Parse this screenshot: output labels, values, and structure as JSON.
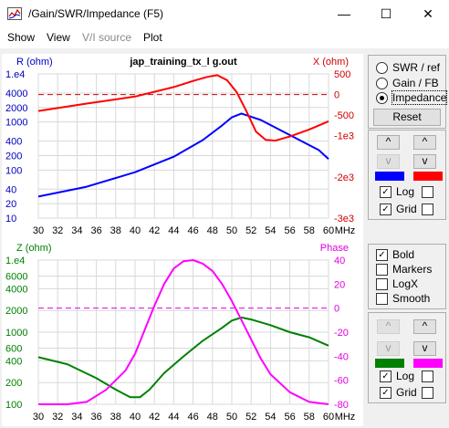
{
  "window": {
    "title": "/Gain/SWR/Impedance (F5)",
    "minimize": "—",
    "maximize": "☐",
    "close": "✕"
  },
  "menu": {
    "items": [
      "Show",
      "View",
      "V/I source",
      "Plot"
    ]
  },
  "chart_data": [
    {
      "type": "line",
      "title": "jap_training_tx_l g.out",
      "ylabel_left": "R (ohm)",
      "ylabel_right": "X (ohm)",
      "xlabel": "MHz",
      "x_ticks": [
        30,
        32,
        34,
        36,
        38,
        40,
        42,
        44,
        46,
        48,
        50,
        52,
        54,
        56,
        58,
        60
      ],
      "y_left_ticks": [
        "1.e4",
        "4000",
        "2000",
        "1000",
        "400",
        "200",
        "100",
        "40",
        "20",
        "10"
      ],
      "y_right_ticks": [
        "500",
        "0",
        "-500",
        "-1e3",
        "-2e3",
        "-3e3"
      ],
      "y_left_scale": "log",
      "series": [
        {
          "name": "R (ohm)",
          "axis": "left",
          "color": "#0000ff",
          "x": [
            30,
            35,
            40,
            44,
            47,
            49,
            50,
            51,
            53,
            55,
            57,
            59,
            61
          ],
          "y": [
            28,
            45,
            90,
            190,
            420,
            850,
            1250,
            1500,
            1100,
            680,
            420,
            260,
            170
          ]
        },
        {
          "name": "X (ohm)",
          "axis": "right",
          "color": "#ff0000",
          "x": [
            30,
            35,
            40,
            44,
            46,
            47.5,
            48.5,
            49.5,
            50.5,
            51.5,
            52.5,
            53.5,
            54.5,
            56,
            58,
            61
          ],
          "y": [
            -400,
            -220,
            -50,
            180,
            330,
            430,
            470,
            350,
            60,
            -400,
            -900,
            -1100,
            -1120,
            -1020,
            -850,
            -650
          ]
        }
      ]
    },
    {
      "type": "line",
      "ylabel_left": "Z (ohm)",
      "ylabel_right": "Phase",
      "xlabel": "MHz",
      "x_ticks": [
        30,
        32,
        34,
        36,
        38,
        40,
        42,
        44,
        46,
        48,
        50,
        52,
        54,
        56,
        58,
        60
      ],
      "y_left_ticks": [
        "1.e4",
        "6000",
        "4000",
        "2000",
        "1000",
        "600",
        "400",
        "200",
        "100"
      ],
      "y_right_ticks": [
        "40",
        "20",
        "0",
        "-20",
        "-40",
        "-60",
        "-80"
      ],
      "y_left_scale": "log",
      "series": [
        {
          "name": "Z (ohm)",
          "axis": "left",
          "color": "#008000",
          "x": [
            30,
            33,
            36,
            38,
            39.5,
            40.5,
            41.5,
            43,
            45,
            47,
            49,
            50,
            51,
            52,
            54,
            56,
            58,
            61
          ],
          "y": [
            450,
            360,
            230,
            160,
            125,
            125,
            160,
            270,
            460,
            760,
            1150,
            1450,
            1600,
            1500,
            1250,
            1000,
            850,
            650
          ]
        },
        {
          "name": "Phase",
          "axis": "right",
          "color": "#ff00ff",
          "x": [
            30,
            33,
            35,
            37,
            39,
            40,
            41,
            42,
            43,
            44,
            45,
            46,
            47,
            48,
            49,
            50,
            51,
            52,
            53,
            54,
            56,
            58,
            61
          ],
          "y": [
            -86,
            -82,
            -78,
            -68,
            -52,
            -38,
            -18,
            2,
            20,
            33,
            39,
            40,
            37,
            31,
            20,
            6,
            -10,
            -26,
            -42,
            -55,
            -70,
            -78,
            -85
          ]
        }
      ]
    }
  ],
  "controls": {
    "mode": {
      "options": [
        "SWR / ref",
        "Gain / FB",
        "Impedance"
      ],
      "selected": "Impedance"
    },
    "reset_label": "Reset",
    "up_label": "^",
    "down_label": "v",
    "top_colors": {
      "left": "#0000ff",
      "right": "#ff0000"
    },
    "top_log": {
      "label": "Log",
      "checked": true,
      "right_checked": false
    },
    "top_grid": {
      "label": "Grid",
      "checked": true,
      "right_checked": false
    },
    "display": {
      "options": [
        {
          "label": "Bold",
          "checked": true
        },
        {
          "label": "Markers",
          "checked": false
        },
        {
          "label": "LogX",
          "checked": false
        },
        {
          "label": "Smooth",
          "checked": false
        }
      ]
    },
    "bottom_colors": {
      "left": "#008000",
      "right": "#ff00ff"
    },
    "bottom_log": {
      "label": "Log",
      "checked": true,
      "right_checked": false
    },
    "bottom_grid": {
      "label": "Grid",
      "checked": true,
      "right_checked": false
    }
  }
}
